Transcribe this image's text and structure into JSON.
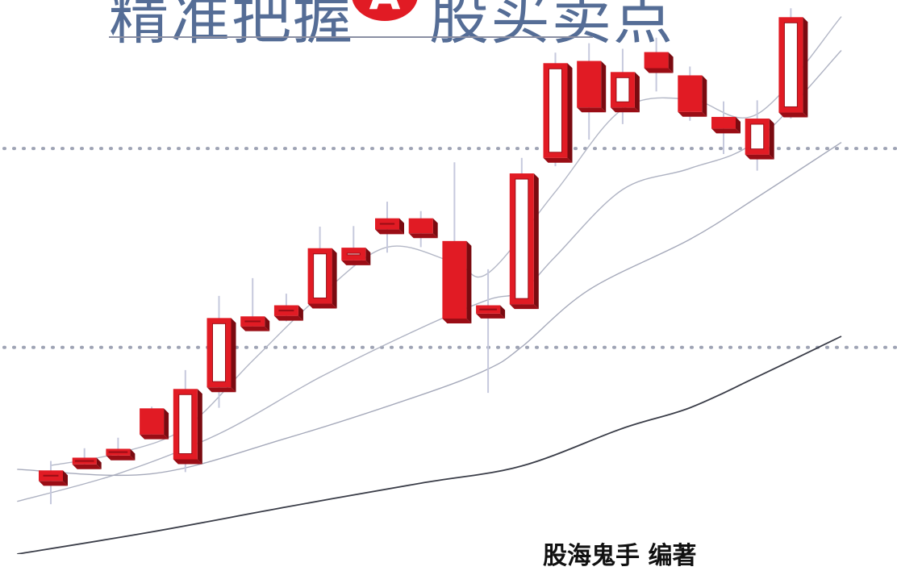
{
  "cover": {
    "title_left": "精准把握",
    "title_badge": "A",
    "title_right": "股买卖点",
    "author": "股海鬼手 编著"
  },
  "chart_data": {
    "type": "candlestick",
    "ylim": [
      0,
      100
    ],
    "grid": false,
    "reference_levels": [
      73.2,
      37.3
    ],
    "candles": [
      {
        "open": 13.2,
        "close": 15.1,
        "high": 16.8,
        "low": 9.0
      },
      {
        "open": 16.2,
        "close": 17.4,
        "high": 19.1,
        "low": 15.4
      },
      {
        "open": 17.8,
        "close": 19.0,
        "high": 21.0,
        "low": 17.0
      },
      {
        "open": 26.3,
        "close": 21.6,
        "high": 26.6,
        "low": 21.0
      },
      {
        "open": 17.1,
        "close": 29.8,
        "high": 33.2,
        "low": 14.8
      },
      {
        "open": 30.1,
        "close": 42.6,
        "high": 46.6,
        "low": 26.4
      },
      {
        "open": 41.1,
        "close": 42.9,
        "high": 49.8,
        "low": 40.7
      },
      {
        "open": 43.0,
        "close": 44.9,
        "high": 47.0,
        "low": 42.0
      },
      {
        "open": 45.2,
        "close": 55.2,
        "high": 59.1,
        "low": 44.3
      },
      {
        "open": 53.0,
        "close": 55.3,
        "high": 59.2,
        "low": 51.8
      },
      {
        "open": 58.6,
        "close": 60.6,
        "high": 63.6,
        "low": 54.4
      },
      {
        "open": 60.6,
        "close": 57.9,
        "high": 61.9,
        "low": 55.4
      },
      {
        "open": 56.5,
        "close": 42.5,
        "high": 70.7,
        "low": 41.8
      },
      {
        "open": 43.4,
        "close": 44.9,
        "high": 51.4,
        "low": 29.1
      },
      {
        "open": 45.1,
        "close": 68.7,
        "high": 71.5,
        "low": 44.5
      },
      {
        "open": 71.5,
        "close": 88.6,
        "high": 90.5,
        "low": 70.0
      },
      {
        "open": 89.0,
        "close": 80.6,
        "high": 92.2,
        "low": 74.8
      },
      {
        "open": 80.6,
        "close": 87.0,
        "high": 91.2,
        "low": 77.6
      },
      {
        "open": 90.6,
        "close": 87.7,
        "high": 93.2,
        "low": 83.5
      },
      {
        "open": 86.4,
        "close": 79.8,
        "high": 88.0,
        "low": 78.2
      },
      {
        "open": 78.9,
        "close": 76.8,
        "high": 81.7,
        "low": 72.2
      },
      {
        "open": 72.1,
        "close": 78.6,
        "high": 81.9,
        "low": 69.2
      },
      {
        "open": 79.7,
        "close": 96.9,
        "high": 98.5,
        "low": 78.6
      }
    ],
    "moving_averages": [
      {
        "x": [
          0,
          2,
          4,
          6,
          8,
          10,
          12,
          13,
          15,
          17,
          19,
          21,
          23.5
        ],
        "values": [
          16.0,
          18.2,
          22.8,
          34.9,
          46.6,
          55.4,
          52.6,
          50.7,
          65.4,
          80.3,
          82.1,
          79.4,
          97.0
        ]
      },
      {
        "x": [
          -1,
          2,
          5,
          8,
          11,
          13,
          14,
          15,
          17,
          19,
          21,
          23.5
        ],
        "values": [
          9.5,
          14.5,
          21.7,
          31.9,
          40.8,
          45.9,
          47.4,
          53.7,
          65.8,
          69.6,
          74.7,
          90.9
        ]
      },
      {
        "x": [
          -1,
          3,
          7,
          11,
          13,
          14,
          16,
          19,
          21,
          23.5
        ],
        "values": [
          15.3,
          14.5,
          20.9,
          28.7,
          33.4,
          37.4,
          47.7,
          56.8,
          64.4,
          74.3
        ]
      },
      {
        "x": [
          -1,
          3,
          7,
          11,
          14,
          17,
          19,
          21,
          23.5
        ],
        "values": [
          0.0,
          4.0,
          8.5,
          12.8,
          15.9,
          22.7,
          26.4,
          32.0,
          39.3
        ]
      }
    ]
  }
}
